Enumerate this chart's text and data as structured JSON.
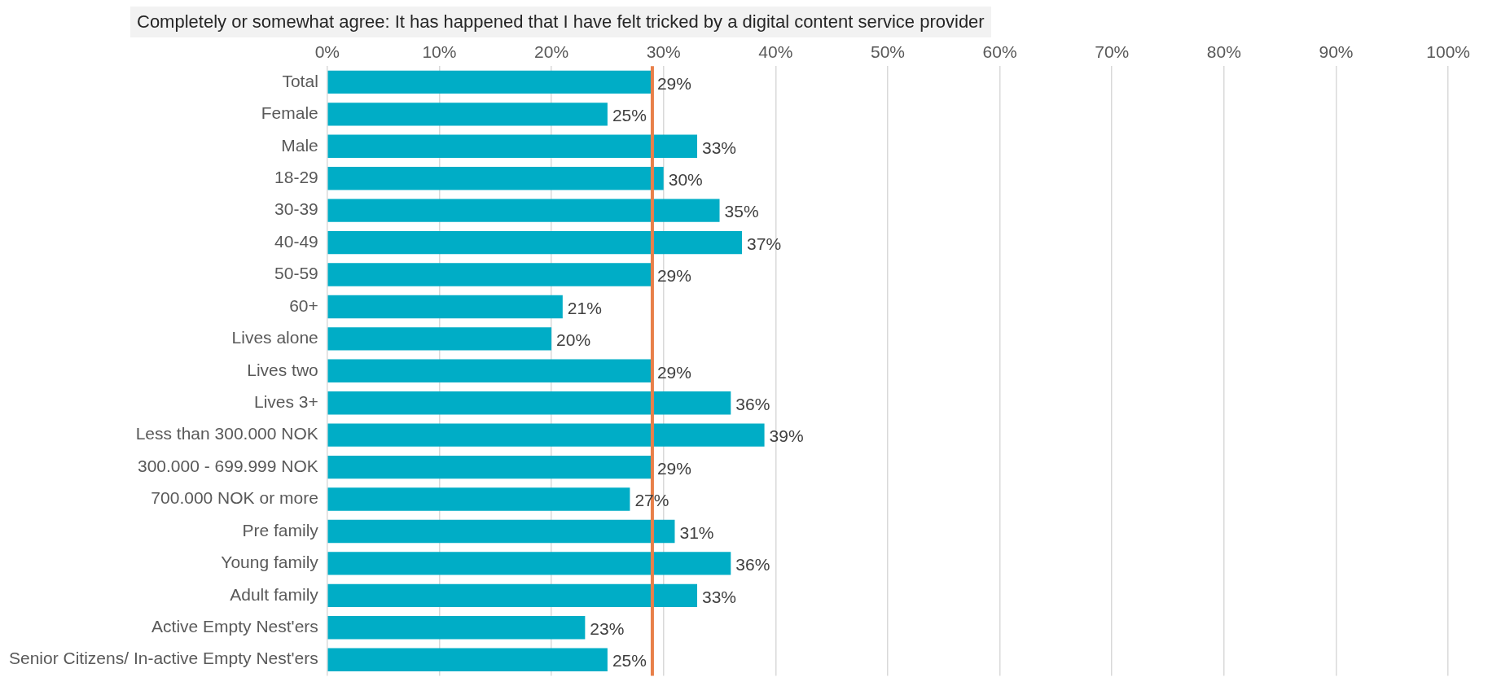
{
  "chart_data": {
    "type": "bar",
    "orientation": "horizontal",
    "title": "Completely or somewhat agree: It has happened that I have felt tricked by a digital content service provider",
    "categories": [
      "Total",
      "Female",
      "Male",
      "18-29",
      "30-39",
      "40-49",
      "50-59",
      "60+",
      "Lives alone",
      "Lives two",
      "Lives 3+",
      "Less than 300.000 NOK",
      "300.000 - 699.999 NOK",
      "700.000 NOK or more",
      "Pre family",
      "Young family",
      "Adult family",
      "Active Empty Nest'ers",
      "Senior Citizens/ In-active Empty Nest'ers"
    ],
    "values": [
      29,
      25,
      33,
      30,
      35,
      37,
      29,
      21,
      20,
      29,
      36,
      39,
      29,
      27,
      31,
      36,
      33,
      23,
      25
    ],
    "value_labels": [
      "29%",
      "25%",
      "33%",
      "30%",
      "35%",
      "37%",
      "29%",
      "21%",
      "20%",
      "29%",
      "36%",
      "39%",
      "29%",
      "27%",
      "31%",
      "36%",
      "33%",
      "23%",
      "25%"
    ],
    "color": "#00adc6",
    "xlim": [
      0,
      100
    ],
    "xticks": [
      {
        "value": 0,
        "label": "0%"
      },
      {
        "value": 10,
        "label": "10%"
      },
      {
        "value": 20,
        "label": "20%"
      },
      {
        "value": 30,
        "label": "30%"
      },
      {
        "value": 40,
        "label": "40%"
      },
      {
        "value": 50,
        "label": "50%"
      },
      {
        "value": 60,
        "label": "60%"
      },
      {
        "value": 70,
        "label": "70%"
      },
      {
        "value": 80,
        "label": "80%"
      },
      {
        "value": 90,
        "label": "90%"
      },
      {
        "value": 100,
        "label": "100%"
      }
    ],
    "ref_lines": [
      {
        "axis": "x",
        "value": 29,
        "color": "#e8804a"
      }
    ],
    "grid": "x",
    "legend": false
  }
}
